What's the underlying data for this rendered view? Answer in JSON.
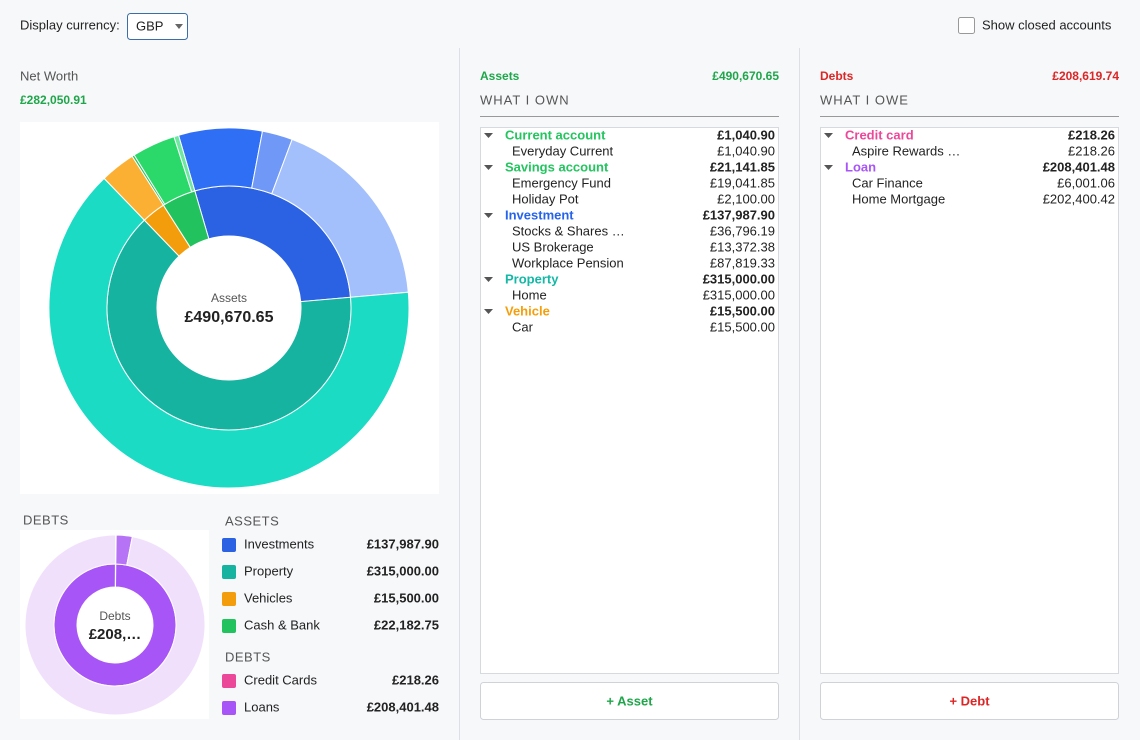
{
  "header": {
    "currency_label": "Display currency:",
    "currency": "GBP",
    "show_closed": "Show closed accounts"
  },
  "net_worth": {
    "label": "Net Worth",
    "value": "£282,050.91"
  },
  "assets_panel": {
    "title": "Assets",
    "total": "£490,670.65",
    "subtitle": "WHAT I OWN",
    "button": "+ Asset",
    "groups": [
      {
        "name": "Current account",
        "total": "£1,040.90",
        "color": "#22c55e",
        "accounts": [
          {
            "name": "Everyday Current",
            "amount": "£1,040.90"
          }
        ]
      },
      {
        "name": "Savings account",
        "total": "£21,141.85",
        "color": "#22c55e",
        "accounts": [
          {
            "name": "Emergency Fund",
            "amount": "£19,041.85"
          },
          {
            "name": "Holiday Pot",
            "amount": "£2,100.00"
          }
        ]
      },
      {
        "name": "Investment",
        "total": "£137,987.90",
        "color": "#2563eb",
        "accounts": [
          {
            "name": "Stocks & Shares …",
            "amount": "£36,796.19"
          },
          {
            "name": "US Brokerage",
            "amount": "£13,372.38"
          },
          {
            "name": "Workplace Pension",
            "amount": "£87,819.33"
          }
        ]
      },
      {
        "name": "Property",
        "total": "£315,000.00",
        "color": "#14b8a6",
        "accounts": [
          {
            "name": "Home",
            "amount": "£315,000.00"
          }
        ]
      },
      {
        "name": "Vehicle",
        "total": "£15,500.00",
        "color": "#f59e0b",
        "accounts": [
          {
            "name": "Car",
            "amount": "£15,500.00"
          }
        ]
      }
    ]
  },
  "debts_panel": {
    "title": "Debts",
    "total": "£208,619.74",
    "subtitle": "WHAT I OWE",
    "button": "+ Debt",
    "groups": [
      {
        "name": "Credit card",
        "total": "£218.26",
        "color": "#ec4899",
        "accounts": [
          {
            "name": "Aspire Rewards …",
            "amount": "£218.26"
          }
        ]
      },
      {
        "name": "Loan",
        "total": "£208,401.48",
        "color": "#a855f7",
        "accounts": [
          {
            "name": "Car Finance",
            "amount": "£6,001.06"
          },
          {
            "name": "Home Mortgage",
            "amount": "£202,400.42"
          }
        ]
      }
    ]
  },
  "chart_data": [
    {
      "type": "donut",
      "center_label": "Assets",
      "center_value": "£490,670.65",
      "legend_title": "ASSETS",
      "categories": [
        "Investments",
        "Property",
        "Vehicles",
        "Cash & Bank"
      ],
      "values": [
        137987.9,
        315000.0,
        15500.0,
        22182.75
      ],
      "value_labels": [
        "£137,987.90",
        "£315,000.00",
        "£15,500.00",
        "£22,182.75"
      ],
      "colors": [
        "#2b62e3",
        "#17b3a1",
        "#f49d0c",
        "#22c35e"
      ],
      "outer_values": [
        36796.19,
        13372.38,
        87819.33,
        315000.0,
        15500.0,
        1040.9,
        19041.85,
        2100.0
      ],
      "outer_colors": [
        "#2f6ff6",
        "#7098f6",
        "#a3bffc",
        "#1cdbc4",
        "#fbb034",
        "#22c35e",
        "#2bd96b",
        "#6ee7a0"
      ]
    },
    {
      "type": "donut",
      "title": "DEBTS",
      "center_label": "Debts",
      "center_value": "£208,…",
      "legend_title": "DEBTS",
      "categories": [
        "Credit Cards",
        "Loans"
      ],
      "values": [
        218.26,
        208401.48
      ],
      "value_labels": [
        "£218.26",
        "£208,401.48"
      ],
      "colors": [
        "#ec4899",
        "#a855f7"
      ],
      "outer_values": [
        218.26,
        6001.06,
        202400.42
      ],
      "outer_colors": [
        "#f472b6",
        "#b673f5",
        "#f1e0fb"
      ]
    }
  ]
}
